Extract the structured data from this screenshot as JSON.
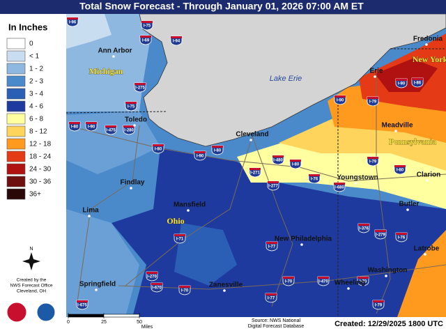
{
  "title": "Total Snow Forecast - Through January 01, 2026 07:00 AM ET",
  "legend": {
    "title": "In Inches",
    "items": [
      {
        "label": "0",
        "color": "#ffffff"
      },
      {
        "label": "< 1",
        "color": "#c9ddf0"
      },
      {
        "label": "1 - 2",
        "color": "#8fb8e0"
      },
      {
        "label": "2 - 3",
        "color": "#4a8acb"
      },
      {
        "label": "3 - 4",
        "color": "#2a5fb5"
      },
      {
        "label": "4 - 6",
        "color": "#1e3a9e"
      },
      {
        "label": "6 - 8",
        "color": "#ffffa0"
      },
      {
        "label": "8 - 12",
        "color": "#ffd45c"
      },
      {
        "label": "12 - 18",
        "color": "#ff9a1e"
      },
      {
        "label": "18 - 24",
        "color": "#e53a16"
      },
      {
        "label": "24 - 30",
        "color": "#b01212"
      },
      {
        "label": "30 - 36",
        "color": "#6e1010"
      },
      {
        "label": "36+",
        "color": "#2a0808"
      }
    ]
  },
  "places": [
    "Ann Arbor",
    "Toledo",
    "Cleveland",
    "Findlay",
    "Lima",
    "Mansfield",
    "Youngstown",
    "Erie",
    "Fredonia",
    "Meadville",
    "Clarion",
    "Butler",
    "New Philadelphia",
    "Latrobe",
    "Washington",
    "Wheeling",
    "Zanesville",
    "Springfield"
  ],
  "states": [
    "Michigan",
    "Ohio",
    "Pennsylvania",
    "New York"
  ],
  "water": "Lake Erie",
  "highways": [
    "I-96",
    "I-75",
    "I-69",
    "I-94",
    "I-275",
    "I-75",
    "I-80",
    "I-90",
    "I-475",
    "I-280",
    "I-80",
    "I-90",
    "I-80",
    "I-271",
    "I-480",
    "I-80",
    "I-277",
    "I-76",
    "I-680",
    "I-90",
    "I-90",
    "I-86",
    "I-79",
    "I-79",
    "I-80",
    "I-71",
    "I-77",
    "I-376",
    "I-279",
    "I-76",
    "I-70",
    "I-470",
    "I-70",
    "I-79",
    "I-77",
    "I-70",
    "I-670",
    "I-270",
    "I-675"
  ],
  "compass": "N",
  "credits": [
    "Created by the",
    "NWS Forecast Office",
    "Cleveland, OH"
  ],
  "scale": {
    "ticks": [
      0,
      25,
      50
    ],
    "unit": "Miles"
  },
  "source": [
    "Source: NWS National",
    "Digital Forecast Database"
  ],
  "created": "Created: 12/29/2025 1800 UTC"
}
